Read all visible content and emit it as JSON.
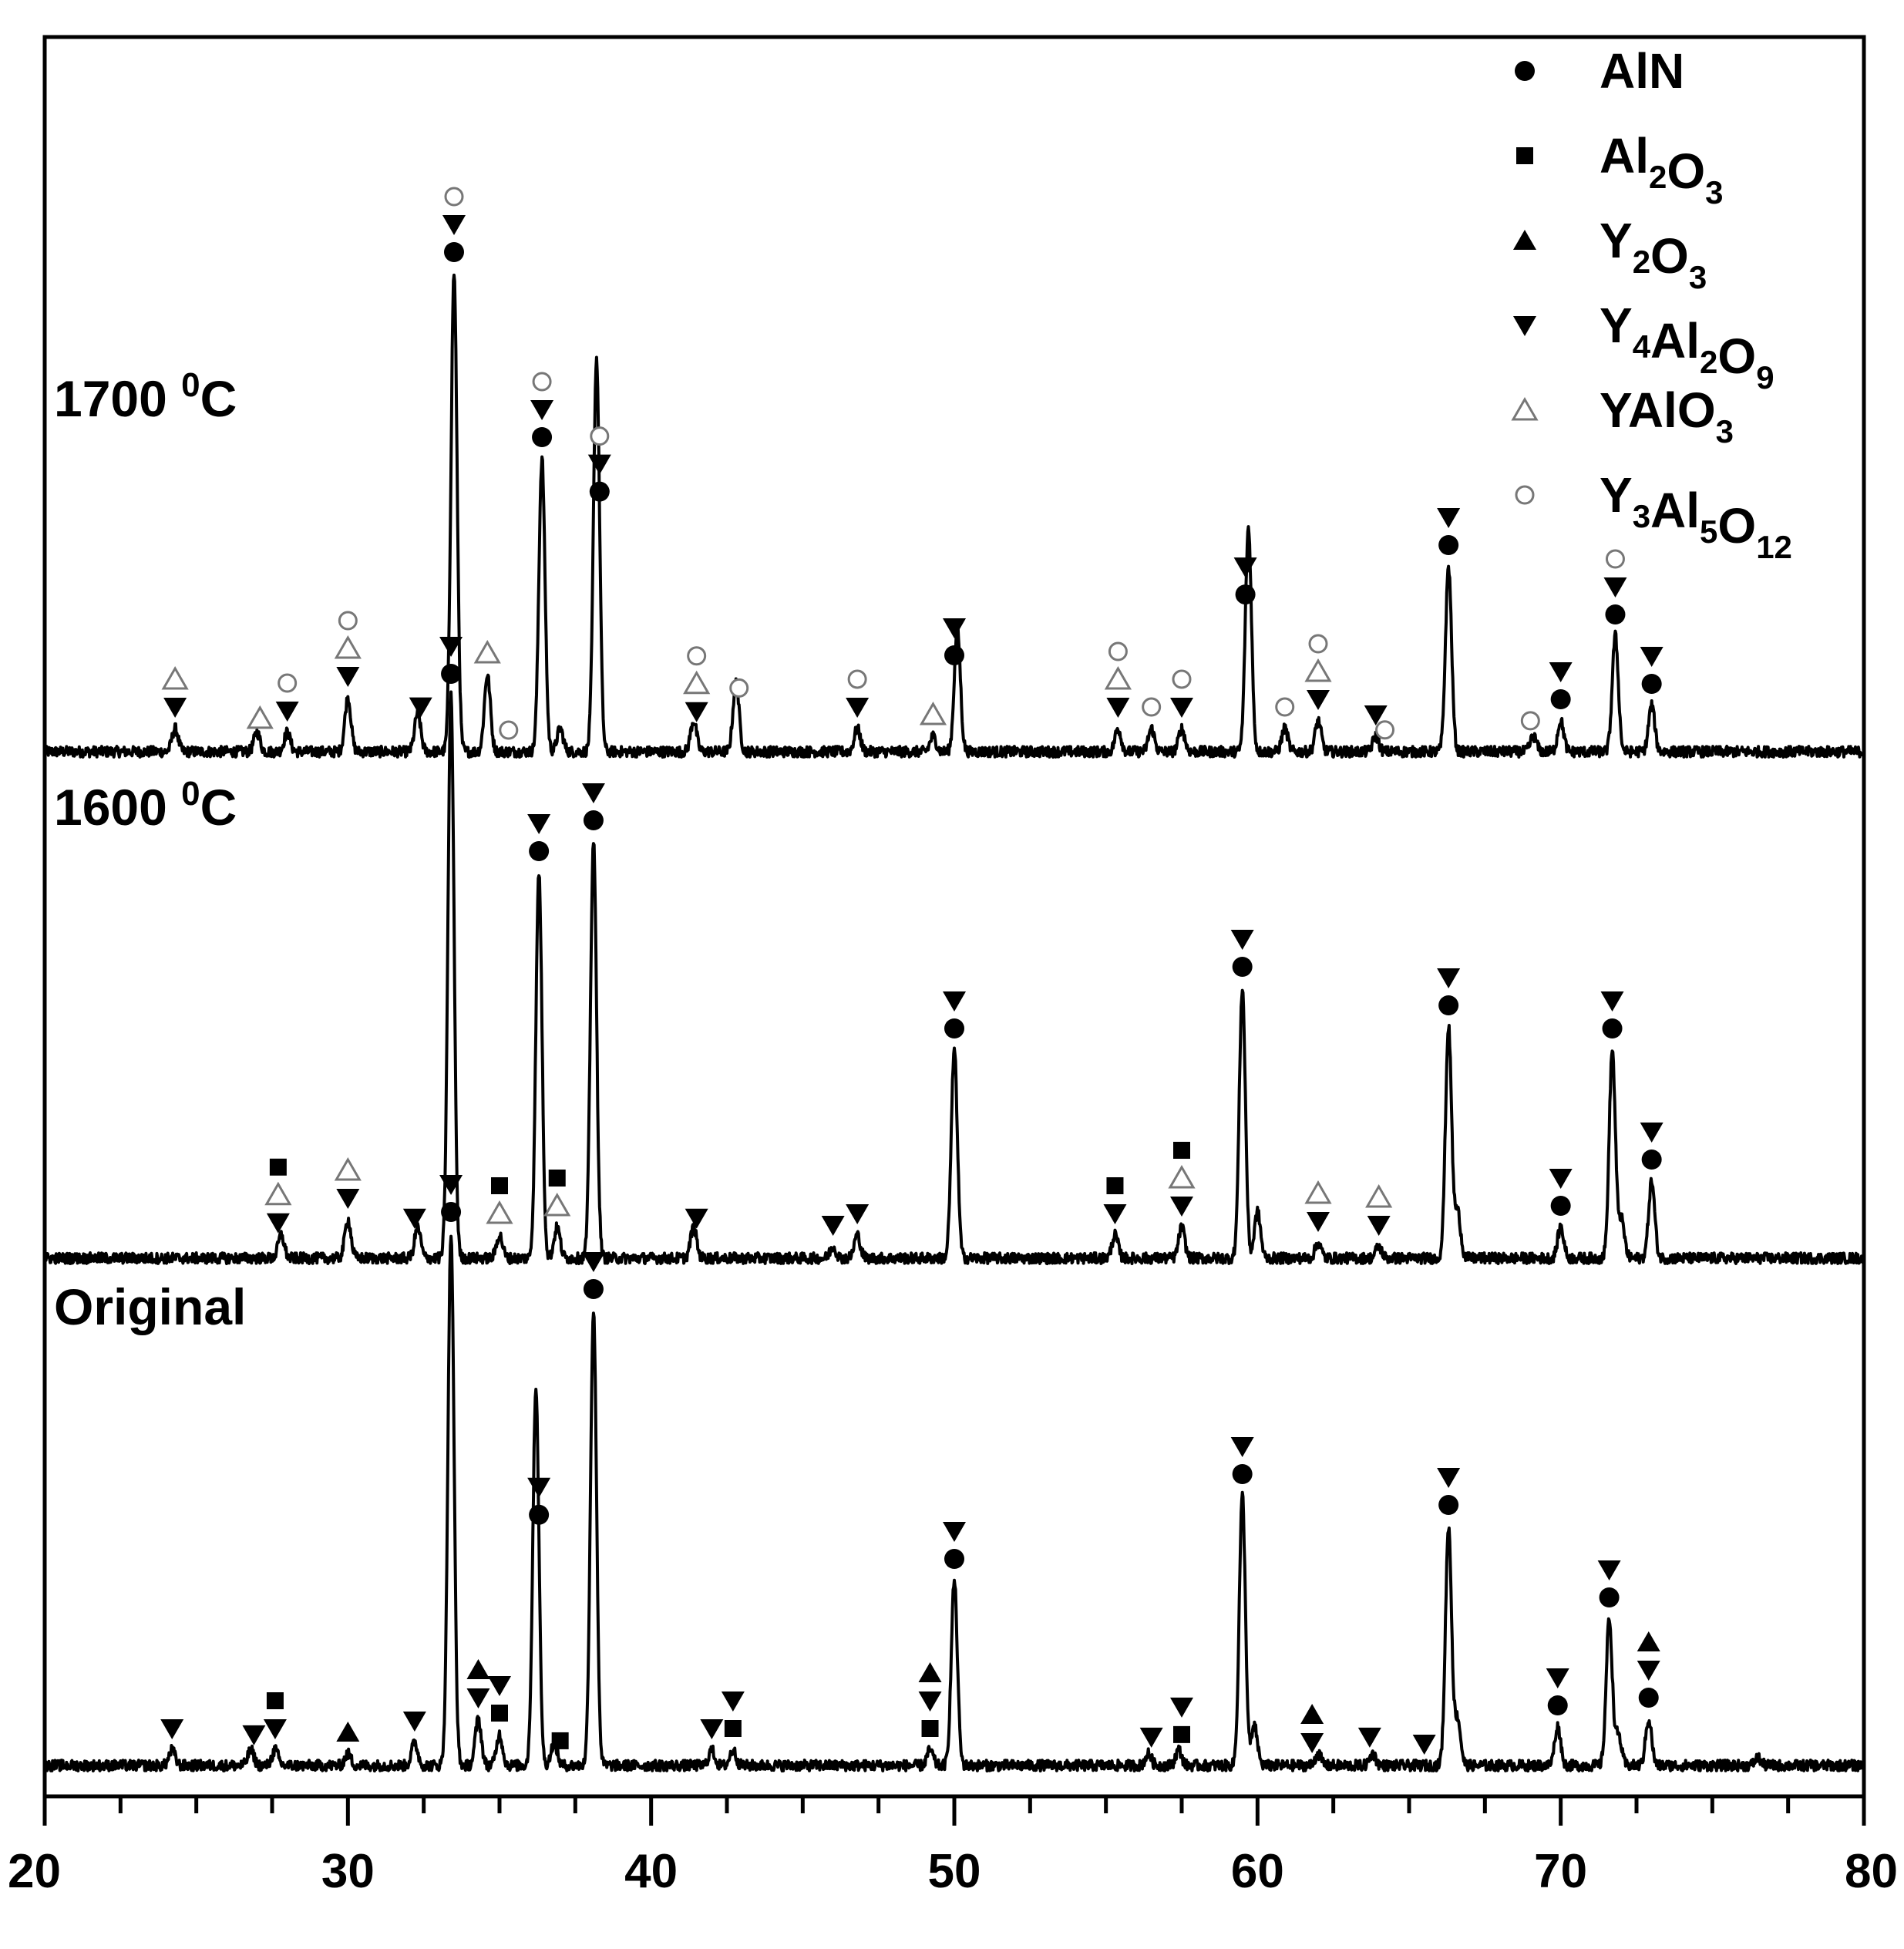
{
  "chart_data": {
    "type": "line",
    "x_axis": {
      "xlim": [
        20,
        80
      ],
      "major_ticks": [
        20,
        30,
        40,
        50,
        60,
        70,
        80
      ],
      "minor_step": 2.5,
      "tick_labels": [
        "20",
        "30",
        "40",
        "50",
        "60",
        "70",
        "80"
      ]
    },
    "y_axis": {
      "ticks": false,
      "labels": false
    },
    "legend": {
      "placement": "top-right",
      "entries": [
        {
          "key": "AlN",
          "symbol": "filled-circle",
          "text": "AlN",
          "parts": [
            [
              "AlN",
              ""
            ]
          ]
        },
        {
          "key": "Al2O3",
          "symbol": "filled-square",
          "text": "Al2O3",
          "parts": [
            [
              "Al",
              "2"
            ],
            [
              "O",
              "3"
            ]
          ]
        },
        {
          "key": "Y2O3",
          "symbol": "filled-triangle-up",
          "text": "Y2O3",
          "parts": [
            [
              "Y",
              "2"
            ],
            [
              "O",
              "3"
            ]
          ]
        },
        {
          "key": "Y4Al2O9",
          "symbol": "filled-triangle-down",
          "text": "Y4Al2O9",
          "parts": [
            [
              "Y",
              "4"
            ],
            [
              "Al",
              "2"
            ],
            [
              "O",
              "9"
            ]
          ]
        },
        {
          "key": "YAlO3",
          "symbol": "open-triangle-up",
          "text": "YAlO3",
          "parts": [
            [
              "YAlO",
              "3"
            ]
          ]
        },
        {
          "key": "Y3Al5O12",
          "symbol": "open-circle",
          "text": "Y3Al5O12",
          "parts": [
            [
              "Y",
              "3"
            ],
            [
              "Al",
              "5"
            ],
            [
              "O",
              "12"
            ]
          ]
        }
      ]
    },
    "series": [
      {
        "name": "1700 0C",
        "label_main": "1700 ",
        "label_sup": "0",
        "label_end": "C",
        "peaks": [
          [
            24.3,
            0.03
          ],
          [
            27.0,
            0.025
          ],
          [
            28.0,
            0.025
          ],
          [
            30.0,
            0.07
          ],
          [
            32.3,
            0.05
          ],
          [
            34.6,
            0.1
          ],
          [
            33.5,
            0.62
          ],
          [
            36.4,
            0.38
          ],
          [
            37.0,
            0.03
          ],
          [
            38.2,
            0.51
          ],
          [
            41.4,
            0.04
          ],
          [
            42.8,
            0.09
          ],
          [
            46.8,
            0.03
          ],
          [
            49.3,
            0.02
          ],
          [
            50.1,
            0.16
          ],
          [
            55.4,
            0.03
          ],
          [
            56.5,
            0.03
          ],
          [
            57.5,
            0.03
          ],
          [
            59.7,
            0.29
          ],
          [
            60.9,
            0.03
          ],
          [
            62.0,
            0.04
          ],
          [
            63.9,
            0.02
          ],
          [
            66.3,
            0.24
          ],
          [
            69.1,
            0.02
          ],
          [
            70.0,
            0.04
          ],
          [
            71.8,
            0.15
          ],
          [
            73.0,
            0.06
          ]
        ],
        "markers": [
          [
            24.3,
            [
              "tri-down",
              "open-tri"
            ]
          ],
          [
            27.1,
            [
              "open-tri"
            ]
          ],
          [
            28.0,
            [
              "tri-down",
              "open-circle"
            ]
          ],
          [
            30.0,
            [
              "tri-down",
              "open-tri",
              "open-circle"
            ]
          ],
          [
            32.4,
            [
              "tri-down"
            ]
          ],
          [
            33.5,
            [
              "circle",
              "tri-down",
              "open-circle"
            ]
          ],
          [
            34.6,
            [
              "open-tri"
            ]
          ],
          [
            35.3,
            [
              "open-circle"
            ]
          ],
          [
            36.4,
            [
              "circle",
              "tri-down",
              "open-circle"
            ]
          ],
          [
            38.3,
            [
              "circle",
              "tri-down",
              "open-circle"
            ]
          ],
          [
            41.5,
            [
              "tri-down",
              "open-tri",
              "open-circle"
            ]
          ],
          [
            42.9,
            [
              "open-circle"
            ]
          ],
          [
            46.8,
            [
              "tri-down",
              "open-circle"
            ]
          ],
          [
            49.3,
            [
              "open-tri"
            ]
          ],
          [
            50.0,
            [
              "circle",
              "tri-down"
            ]
          ],
          [
            55.4,
            [
              "tri-down",
              "open-tri",
              "open-circle"
            ]
          ],
          [
            56.5,
            [
              "open-circle"
            ]
          ],
          [
            57.5,
            [
              "tri-down",
              "open-circle"
            ]
          ],
          [
            59.6,
            [
              "circle",
              "tri-down"
            ]
          ],
          [
            60.9,
            [
              "open-circle"
            ]
          ],
          [
            62.0,
            [
              "tri-down",
              "open-tri",
              "open-circle"
            ]
          ],
          [
            63.9,
            [
              "tri-down"
            ]
          ],
          [
            64.2,
            [
              "open-circle"
            ]
          ],
          [
            66.3,
            [
              "circle",
              "tri-down"
            ]
          ],
          [
            69.0,
            [
              "open-circle"
            ]
          ],
          [
            70.0,
            [
              "circle",
              "tri-down"
            ]
          ],
          [
            71.8,
            [
              "circle",
              "tri-down",
              "open-circle"
            ]
          ],
          [
            73.0,
            [
              "circle",
              "tri-down"
            ]
          ]
        ]
      },
      {
        "name": "1600 0C",
        "label_main": "1600 ",
        "label_sup": "0",
        "label_end": "C",
        "peaks": [
          [
            27.8,
            0.03
          ],
          [
            30.0,
            0.05
          ],
          [
            32.3,
            0.04
          ],
          [
            33.4,
            0.73
          ],
          [
            35.0,
            0.03
          ],
          [
            36.3,
            0.5
          ],
          [
            36.9,
            0.04
          ],
          [
            38.1,
            0.54
          ],
          [
            41.4,
            0.04
          ],
          [
            46.0,
            0.015
          ],
          [
            46.8,
            0.03
          ],
          [
            50.0,
            0.27
          ],
          [
            55.3,
            0.03
          ],
          [
            57.5,
            0.04
          ],
          [
            59.5,
            0.35
          ],
          [
            60.0,
            0.06
          ],
          [
            62.0,
            0.02
          ],
          [
            64.0,
            0.015
          ],
          [
            66.3,
            0.3
          ],
          [
            66.6,
            0.06
          ],
          [
            70.0,
            0.04
          ],
          [
            71.7,
            0.27
          ],
          [
            72.0,
            0.05
          ],
          [
            73.0,
            0.1
          ]
        ],
        "markers": [
          [
            27.7,
            [
              "tri-down",
              "open-tri",
              "square"
            ]
          ],
          [
            30.0,
            [
              "tri-down",
              "open-tri"
            ]
          ],
          [
            32.2,
            [
              "tri-down"
            ]
          ],
          [
            33.4,
            [
              "circle",
              "tri-down"
            ]
          ],
          [
            35.0,
            [
              "open-tri",
              "square"
            ]
          ],
          [
            36.3,
            [
              "circle",
              "tri-down"
            ]
          ],
          [
            36.9,
            [
              "open-tri",
              "square"
            ]
          ],
          [
            38.1,
            [
              "circle",
              "tri-down"
            ]
          ],
          [
            41.5,
            [
              "tri-down"
            ]
          ],
          [
            46.0,
            [
              "tri-down"
            ]
          ],
          [
            46.8,
            [
              "tri-down"
            ]
          ],
          [
            50.0,
            [
              "circle",
              "tri-down"
            ]
          ],
          [
            55.3,
            [
              "tri-down",
              "square"
            ]
          ],
          [
            57.5,
            [
              "tri-down",
              "open-tri",
              "square"
            ]
          ],
          [
            59.5,
            [
              "circle",
              "tri-down"
            ]
          ],
          [
            62.0,
            [
              "tri-down",
              "open-tri"
            ]
          ],
          [
            64.0,
            [
              "tri-down",
              "open-tri"
            ]
          ],
          [
            66.3,
            [
              "circle",
              "tri-down"
            ]
          ],
          [
            70.0,
            [
              "circle",
              "tri-down"
            ]
          ],
          [
            71.7,
            [
              "circle",
              "tri-down"
            ]
          ],
          [
            73.0,
            [
              "circle",
              "tri-down"
            ]
          ]
        ]
      },
      {
        "name": "Original",
        "label_main": "Original",
        "label_sup": "",
        "label_end": "",
        "peaks": [
          [
            24.2,
            0.02
          ],
          [
            26.8,
            0.02
          ],
          [
            27.6,
            0.02
          ],
          [
            30.0,
            0.015
          ],
          [
            32.2,
            0.03
          ],
          [
            33.4,
            0.69
          ],
          [
            34.3,
            0.06
          ],
          [
            35.0,
            0.04
          ],
          [
            36.2,
            0.49
          ],
          [
            36.8,
            0.03
          ],
          [
            38.1,
            0.59
          ],
          [
            42.0,
            0.02
          ],
          [
            42.7,
            0.02
          ],
          [
            49.2,
            0.02
          ],
          [
            50.0,
            0.24
          ],
          [
            56.4,
            0.015
          ],
          [
            57.4,
            0.02
          ],
          [
            59.5,
            0.35
          ],
          [
            59.9,
            0.05
          ],
          [
            62.0,
            0.015
          ],
          [
            63.8,
            0.015
          ],
          [
            66.3,
            0.31
          ],
          [
            66.6,
            0.06
          ],
          [
            69.9,
            0.05
          ],
          [
            71.6,
            0.19
          ],
          [
            71.9,
            0.04
          ],
          [
            72.9,
            0.06
          ],
          [
            76.5,
            0.01
          ]
        ],
        "markers": [
          [
            24.2,
            [
              "tri-down"
            ]
          ],
          [
            26.9,
            [
              "tri-down"
            ]
          ],
          [
            27.6,
            [
              "tri-down",
              "square"
            ]
          ],
          [
            30.0,
            [
              "tri-up"
            ]
          ],
          [
            32.2,
            [
              "tri-down"
            ]
          ],
          [
            33.4,
            [
              "circle",
              "tri-down"
            ]
          ],
          [
            34.3,
            [
              "tri-down",
              "tri-up"
            ]
          ],
          [
            35.0,
            [
              "square",
              "tri-down"
            ]
          ],
          [
            36.3,
            [
              "circle",
              "tri-down"
            ]
          ],
          [
            37.0,
            [
              "square"
            ]
          ],
          [
            38.1,
            [
              "circle",
              "tri-down"
            ]
          ],
          [
            42.0,
            [
              "tri-down"
            ]
          ],
          [
            42.7,
            [
              "square",
              "tri-down"
            ]
          ],
          [
            49.2,
            [
              "square",
              "tri-down",
              "tri-up"
            ]
          ],
          [
            50.0,
            [
              "circle",
              "tri-down"
            ]
          ],
          [
            56.5,
            [
              "tri-down"
            ]
          ],
          [
            57.5,
            [
              "square",
              "tri-down"
            ]
          ],
          [
            59.5,
            [
              "circle",
              "tri-down"
            ]
          ],
          [
            61.8,
            [
              "tri-down",
              "tri-up"
            ]
          ],
          [
            63.7,
            [
              "tri-down"
            ]
          ],
          [
            65.5,
            [
              "tri-down"
            ]
          ],
          [
            66.3,
            [
              "circle",
              "tri-down"
            ]
          ],
          [
            69.9,
            [
              "circle",
              "tri-down"
            ]
          ],
          [
            71.6,
            [
              "circle",
              "tri-down"
            ]
          ],
          [
            72.9,
            [
              "circle",
              "tri-down",
              "tri-up"
            ]
          ]
        ]
      }
    ]
  }
}
